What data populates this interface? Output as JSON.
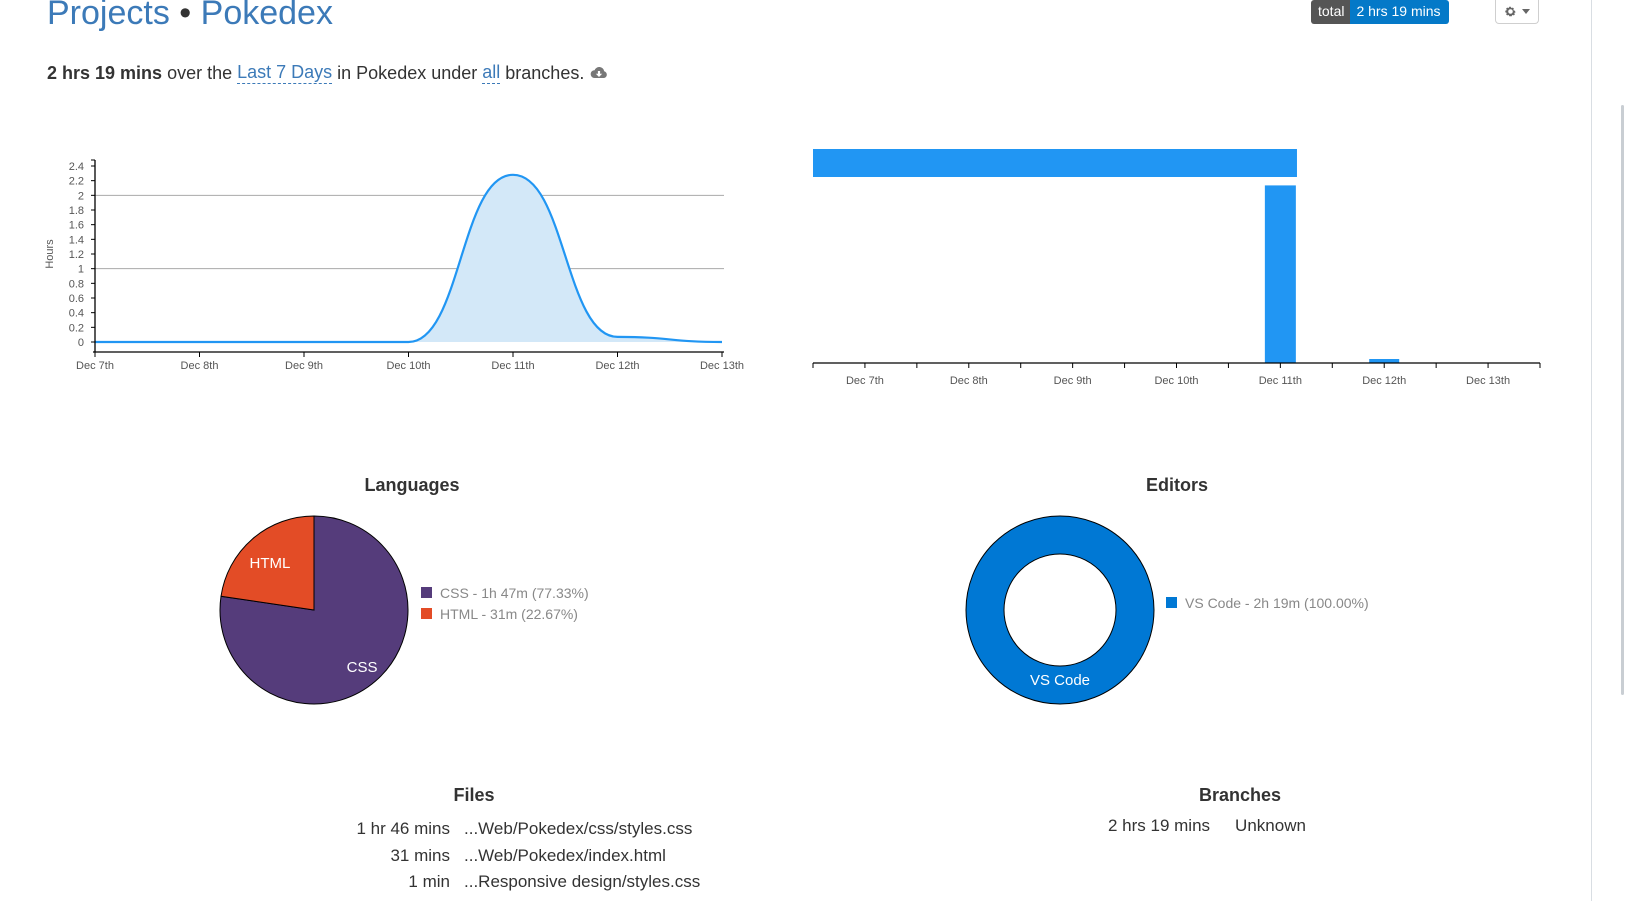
{
  "header": {
    "breadcrumb_projects": "Projects",
    "separator": "•",
    "breadcrumb_project": "Pokedex",
    "total_label": "total",
    "total_value": "2 hrs 19 mins",
    "settings_icon": "gear-icon"
  },
  "summary": {
    "duration": "2 hrs 19 mins",
    "t1": " over the ",
    "range": "Last 7 Days",
    "t2": " in Pokedex under ",
    "branch": "all",
    "t3": " branches.",
    "icon": "cloud-download-icon"
  },
  "colors": {
    "accent": "#2196f3",
    "area_fill": "#d3e8f8",
    "css": "#553c7b",
    "html": "#e34c26",
    "vscode": "#0078d4",
    "title": "#3c7ab8"
  },
  "chart_data": [
    {
      "type": "area",
      "ylabel": "Hours",
      "xlabel": "",
      "x": [
        "Dec 7th",
        "Dec 8th",
        "Dec 9th",
        "Dec 10th",
        "Dec 11th",
        "Dec 12th",
        "Dec 13th"
      ],
      "y_ticks": [
        "0",
        "0.2",
        "0.4",
        "0.6",
        "0.8",
        "1",
        "1.2",
        "1.4",
        "1.6",
        "1.8",
        "2",
        "2.2",
        "2.4"
      ],
      "ylim": [
        0,
        2.4
      ],
      "values": [
        0.0,
        0.0,
        0.0,
        0.0,
        2.28,
        0.07,
        0.0
      ],
      "grid_lines_at": [
        1,
        2
      ]
    },
    {
      "type": "bar",
      "x": [
        "Dec 7th",
        "Dec 8th",
        "Dec 9th",
        "Dec 10th",
        "Dec 11th",
        "Dec 12th",
        "Dec 13th"
      ],
      "values": [
        0,
        0,
        0,
        0,
        2.22,
        0.05,
        0
      ],
      "ylim": [
        0,
        2.6
      ],
      "range_bar": {
        "start_day": 0,
        "end_day": 4.66,
        "value": 2.5
      }
    },
    {
      "type": "pie",
      "title": "Languages",
      "slices": [
        {
          "label": "CSS",
          "value": 77.33,
          "legend": "CSS - 1h 47m (77.33%)"
        },
        {
          "label": "HTML",
          "value": 22.67,
          "legend": "HTML - 31m (22.67%)"
        }
      ]
    },
    {
      "type": "pie",
      "title": "Editors",
      "slices": [
        {
          "label": "VS Code",
          "value": 100,
          "legend": "VS Code - 2h 19m (100.00%)"
        }
      ]
    }
  ],
  "files": {
    "title": "Files",
    "rows": [
      {
        "time": "1 hr 46 mins",
        "path": "...Web/Pokedex/css/styles.css"
      },
      {
        "time": "31 mins",
        "path": "...Web/Pokedex/index.html"
      },
      {
        "time": "1 min",
        "path": "...Responsive design/styles.css"
      }
    ]
  },
  "branches": {
    "title": "Branches",
    "rows": [
      {
        "time": "2 hrs 19 mins",
        "name": "Unknown"
      }
    ]
  }
}
